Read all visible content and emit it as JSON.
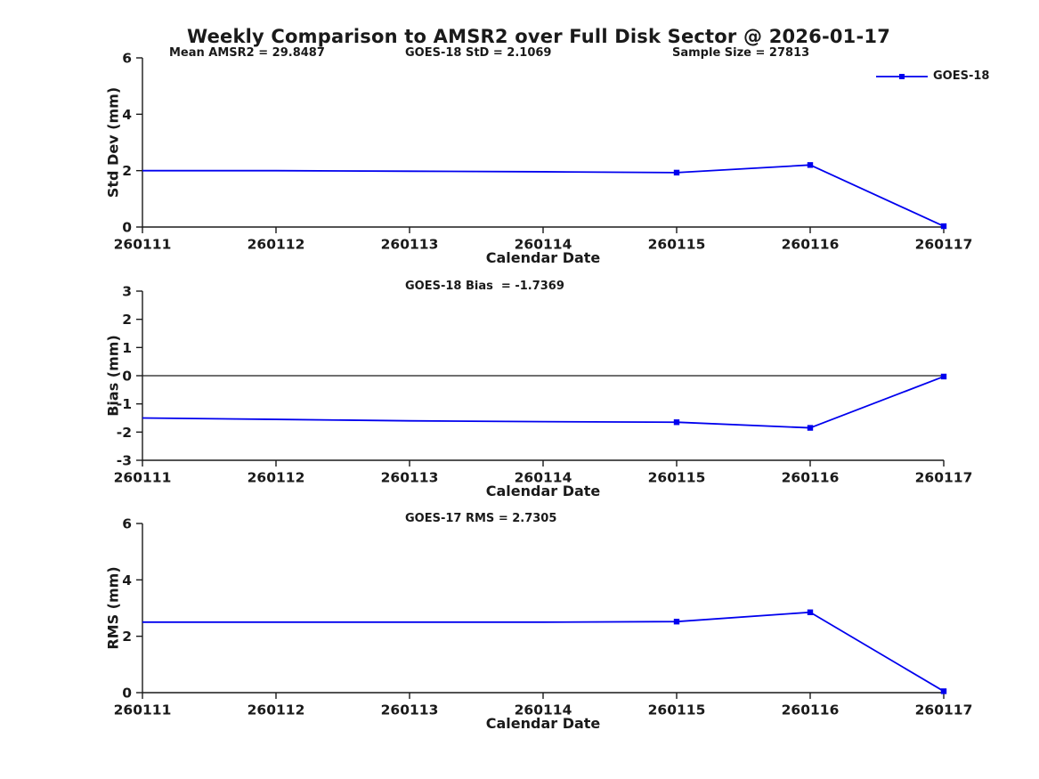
{
  "figure": {
    "title": "Weekly Comparison to AMSR2 over Full Disk Sector @ 2026-01-17",
    "line_color": "#0000EE",
    "axis_color": "#1a1a1a"
  },
  "chart_data": [
    {
      "type": "line",
      "subplot": "std-dev",
      "annotations": [
        "Mean AMSR2 = 29.8487",
        "GOES-18 StD = 2.1069",
        "Sample Size = 27813"
      ],
      "ylabel": "Std Dev (mm)",
      "xlabel": "Calendar Date",
      "x": [
        260111,
        260112,
        260113,
        260114,
        260115,
        260116,
        260117
      ],
      "x_tick_labels": [
        "260111",
        "260112",
        "260113",
        "260114",
        "260115",
        "260116",
        "260117"
      ],
      "ylim": [
        0,
        6
      ],
      "yticks": [
        0,
        2,
        4,
        6
      ],
      "grid": false,
      "legend": {
        "label": "GOES-18",
        "position": "top-right"
      },
      "series": [
        {
          "name": "GOES-18",
          "color": "#0000EE",
          "marker": "square",
          "values": [
            2.0,
            2.0,
            1.98,
            1.96,
            1.93,
            2.2,
            0.03
          ],
          "marker_x": [
            260115,
            260116,
            260117
          ]
        }
      ]
    },
    {
      "type": "line",
      "subplot": "bias",
      "annotations": [
        "GOES-18 Bias  = -1.7369"
      ],
      "ylabel": "Bias (mm)",
      "xlabel": "Calendar Date",
      "x": [
        260111,
        260112,
        260113,
        260114,
        260115,
        260116,
        260117
      ],
      "x_tick_labels": [
        "260111",
        "260112",
        "260113",
        "260114",
        "260115",
        "260116",
        "260117"
      ],
      "ylim": [
        -3,
        3
      ],
      "yticks": [
        -3,
        -2,
        -1,
        0,
        1,
        2,
        3
      ],
      "grid": false,
      "zero_line": true,
      "series": [
        {
          "name": "GOES-18",
          "color": "#0000EE",
          "marker": "square",
          "values": [
            -1.5,
            -1.55,
            -1.6,
            -1.63,
            -1.65,
            -1.85,
            -0.03
          ],
          "marker_x": [
            260115,
            260116,
            260117
          ]
        }
      ]
    },
    {
      "type": "line",
      "subplot": "rms",
      "annotations": [
        "GOES-17 RMS = 2.7305"
      ],
      "ylabel": "RMS (mm)",
      "xlabel": "Calendar Date",
      "x": [
        260111,
        260112,
        260113,
        260114,
        260115,
        260116,
        260117
      ],
      "x_tick_labels": [
        "260111",
        "260112",
        "260113",
        "260114",
        "260115",
        "260116",
        "260117"
      ],
      "ylim": [
        0,
        6
      ],
      "yticks": [
        0,
        2,
        4,
        6
      ],
      "grid": false,
      "series": [
        {
          "name": "GOES-18",
          "color": "#0000EE",
          "marker": "square",
          "values": [
            2.5,
            2.5,
            2.5,
            2.5,
            2.52,
            2.85,
            0.05
          ],
          "marker_x": [
            260115,
            260116,
            260117
          ]
        }
      ]
    }
  ]
}
